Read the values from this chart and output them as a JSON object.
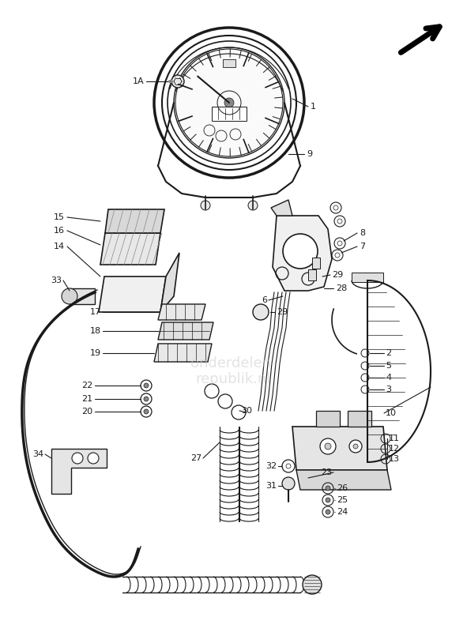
{
  "bg_color": "#ffffff",
  "lc": "#1a1a1a",
  "figw": 5.91,
  "figh": 8.0,
  "dpi": 100,
  "watermark": "onderdelen-\nrepublik.nl"
}
